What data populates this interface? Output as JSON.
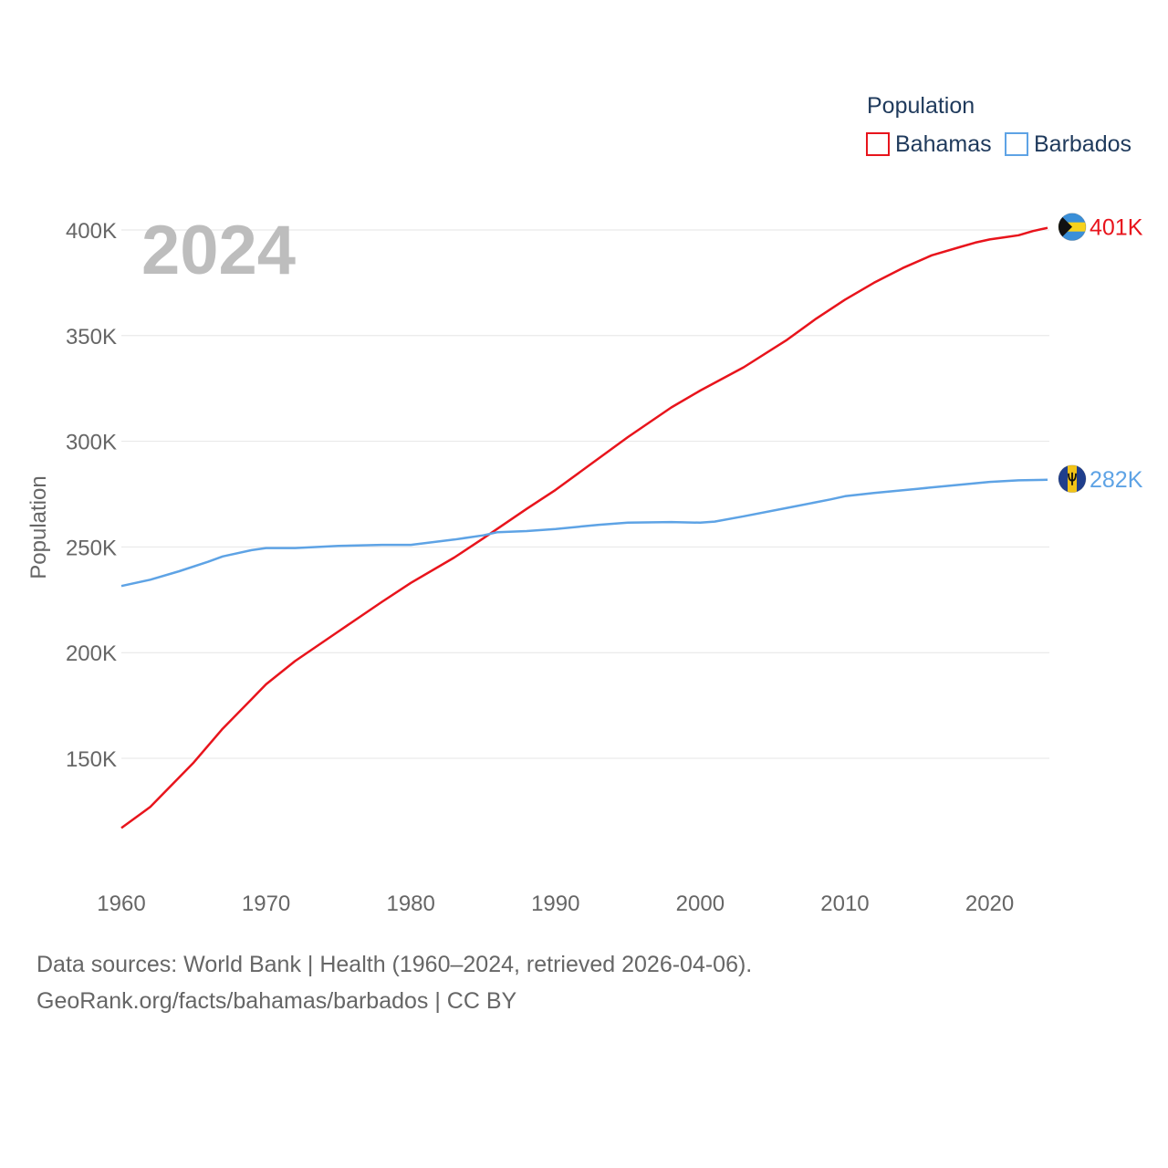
{
  "chart_data": {
    "type": "line",
    "year_watermark": "2024",
    "ylabel": "Population",
    "xlabel": "",
    "xlim": [
      1960,
      2024
    ],
    "ylim": [
      100000,
      420000
    ],
    "x_ticks": [
      1960,
      1970,
      1980,
      1990,
      2000,
      2010,
      2020
    ],
    "y_ticks": [
      150000,
      200000,
      250000,
      300000,
      350000,
      400000
    ],
    "y_tick_labels": [
      "150K",
      "200K",
      "250K",
      "300K",
      "350K",
      "400K"
    ],
    "legend": {
      "title": "Population",
      "position": "top-right"
    },
    "series": [
      {
        "name": "Bahamas",
        "color": "#e8141c",
        "end_label": "401K",
        "flag": "bahamas-flag-icon",
        "points": [
          [
            1960,
            117000
          ],
          [
            1962,
            127000
          ],
          [
            1965,
            148000
          ],
          [
            1967,
            164000
          ],
          [
            1969,
            178000
          ],
          [
            1970,
            185000
          ],
          [
            1972,
            196000
          ],
          [
            1975,
            210000
          ],
          [
            1978,
            224000
          ],
          [
            1980,
            233000
          ],
          [
            1983,
            245000
          ],
          [
            1985,
            254000
          ],
          [
            1988,
            268000
          ],
          [
            1990,
            277000
          ],
          [
            1993,
            292000
          ],
          [
            1995,
            302000
          ],
          [
            1998,
            316000
          ],
          [
            2000,
            324000
          ],
          [
            2003,
            335000
          ],
          [
            2006,
            348000
          ],
          [
            2008,
            358000
          ],
          [
            2010,
            367000
          ],
          [
            2012,
            375000
          ],
          [
            2014,
            382000
          ],
          [
            2016,
            388000
          ],
          [
            2018,
            392000
          ],
          [
            2019,
            394000
          ],
          [
            2020,
            395500
          ],
          [
            2021,
            396500
          ],
          [
            2022,
            397500
          ],
          [
            2023,
            399500
          ],
          [
            2024,
            401000
          ]
        ]
      },
      {
        "name": "Barbados",
        "color": "#5ea3e5",
        "end_label": "282K",
        "flag": "barbados-flag-icon",
        "points": [
          [
            1960,
            231500
          ],
          [
            1962,
            234500
          ],
          [
            1964,
            238500
          ],
          [
            1966,
            243000
          ],
          [
            1967,
            245500
          ],
          [
            1969,
            248500
          ],
          [
            1970,
            249500
          ],
          [
            1972,
            249500
          ],
          [
            1975,
            250500
          ],
          [
            1978,
            251000
          ],
          [
            1980,
            251000
          ],
          [
            1983,
            253500
          ],
          [
            1985,
            255500
          ],
          [
            1986,
            257000
          ],
          [
            1988,
            257500
          ],
          [
            1990,
            258500
          ],
          [
            1993,
            260500
          ],
          [
            1995,
            261500
          ],
          [
            1998,
            261800
          ],
          [
            2000,
            261500
          ],
          [
            2001,
            262000
          ],
          [
            2003,
            264500
          ],
          [
            2006,
            268500
          ],
          [
            2009,
            272500
          ],
          [
            2010,
            274000
          ],
          [
            2012,
            275500
          ],
          [
            2015,
            277500
          ],
          [
            2018,
            279500
          ],
          [
            2020,
            280800
          ],
          [
            2022,
            281500
          ],
          [
            2024,
            281800
          ]
        ]
      }
    ]
  },
  "footer": {
    "line1": "Data sources: World Bank | Health (1960–2024, retrieved 2026-04-06).",
    "line2": "GeoRank.org/facts/bahamas/barbados | CC BY"
  }
}
